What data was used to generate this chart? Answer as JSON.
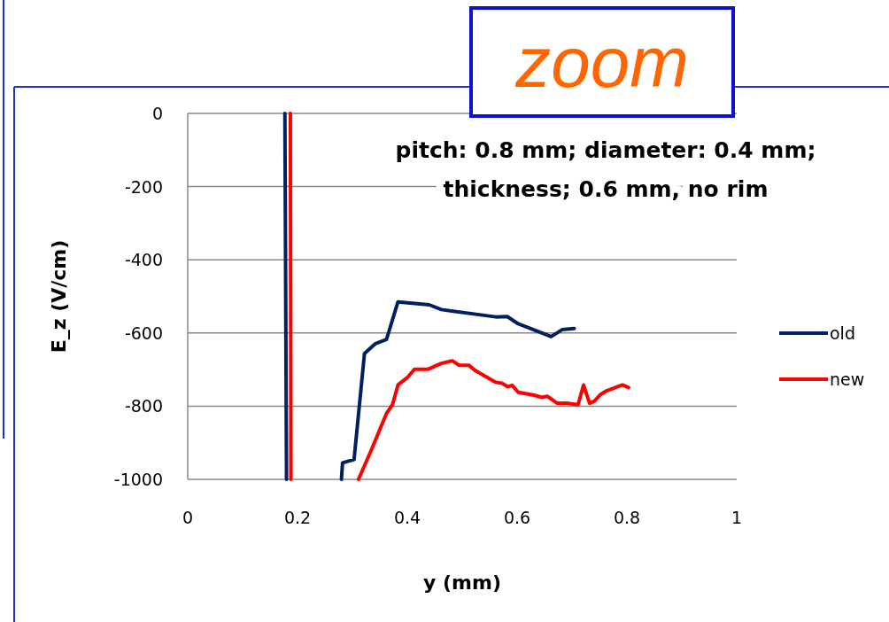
{
  "chart_data": {
    "type": "line",
    "xlabel": "y (mm)",
    "ylabel": "E_z (V/cm)",
    "annotations": [
      "zoom",
      "pitch: 0.8 mm; diameter: 0.4 mm;\nthickness; 0.6 mm, no rim"
    ],
    "xlim": [
      0,
      1
    ],
    "xticks": [
      0,
      0.2,
      0.4,
      0.6,
      0.8,
      1
    ],
    "ylim": [
      -1000,
      0
    ],
    "yticks": [
      0,
      -200,
      -400,
      -600,
      -800,
      -1000
    ],
    "grid": "y",
    "legend": "right",
    "marker": "none",
    "line_style": "solid",
    "series": [
      {
        "name": "old",
        "color": "#002060",
        "x": [
          0.177,
          0.18,
          0.23,
          0.28,
          0.282,
          0.303,
          0.322,
          0.342,
          0.362,
          0.383,
          0.44,
          0.462,
          0.561,
          0.582,
          0.602,
          0.662,
          0.682,
          0.704
        ],
        "values": [
          0,
          -1000,
          null,
          -1000,
          -955,
          -946,
          -656,
          -629,
          -618,
          -515,
          -523,
          -536,
          -556,
          -555,
          -575,
          -610,
          -591,
          -588
        ]
      },
      {
        "name": "new",
        "color": "#ff0000",
        "x": [
          0.187,
          0.188,
          0.25,
          0.311,
          0.333,
          0.362,
          0.373,
          0.383,
          0.4,
          0.413,
          0.438,
          0.462,
          0.482,
          0.494,
          0.512,
          0.524,
          0.561,
          0.572,
          0.583,
          0.591,
          0.602,
          0.631,
          0.645,
          0.655,
          0.673,
          0.69,
          0.711,
          0.721,
          0.732,
          0.741,
          0.752,
          0.763,
          0.784,
          0.792,
          0.803
        ],
        "values": [
          0,
          -1000,
          null,
          -1000,
          -925,
          -820,
          -796,
          -742,
          -722,
          -699,
          -699,
          -683,
          -676,
          -688,
          -688,
          -703,
          -735,
          -737,
          -747,
          -743,
          -762,
          -770,
          -776,
          -773,
          -792,
          -792,
          -796,
          -742,
          -792,
          -786,
          -768,
          -758,
          -746,
          -742,
          -749
        ]
      }
    ]
  }
}
